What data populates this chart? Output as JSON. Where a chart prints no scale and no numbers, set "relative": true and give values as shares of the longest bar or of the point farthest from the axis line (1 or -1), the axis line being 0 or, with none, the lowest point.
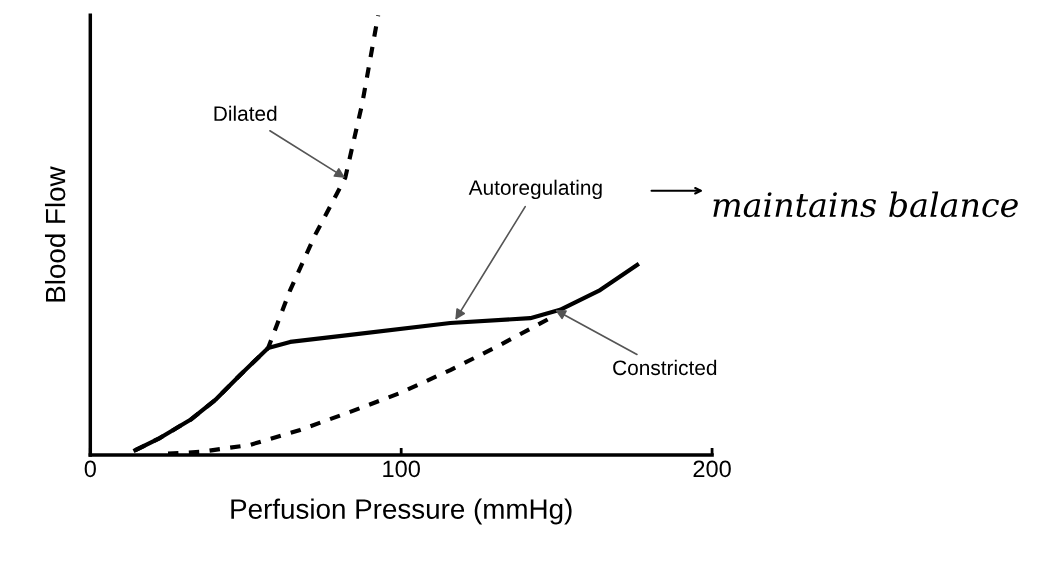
{
  "chart_data": {
    "type": "line",
    "relative": true,
    "xlabel": "Perfusion Pressure (mmHg)",
    "ylabel": "Blood Flow",
    "xlim": [
      0,
      200
    ],
    "xticks": [
      0,
      100,
      200
    ],
    "tick_labels": "x",
    "grid": false,
    "legend": false,
    "marker": "none",
    "series": [
      {
        "color": "#000000",
        "line_style": "dashed",
        "x": [
          14.5,
          22.5,
          32.2,
          40.2,
          48.2,
          57.2,
          64.3,
          72.3,
          82,
          87.5,
          92.6
        ],
        "values": [
          0.011,
          0.039,
          0.08,
          0.125,
          0.182,
          0.243,
          0.375,
          0.5,
          0.63,
          0.8,
          1.0
        ]
      },
      {
        "color": "#000000",
        "line_style": "dashed",
        "x": [
          25,
          35.4,
          51.4,
          67.5,
          83.6,
          99.7,
          115.8,
          131.8,
          147.9
        ],
        "values": [
          0.003,
          0.007,
          0.023,
          0.057,
          0.098,
          0.141,
          0.193,
          0.25,
          0.311
        ]
      },
      {
        "color": "#000000",
        "line_style": "solid",
        "x": [
          14.5,
          22.5,
          32.2,
          40.2,
          48.2,
          57.2,
          64.3,
          83.6,
          115.8,
          141.5,
          151.1,
          164,
          175.9
        ],
        "values": [
          0.011,
          0.039,
          0.08,
          0.125,
          0.182,
          0.243,
          0.257,
          0.273,
          0.3,
          0.311,
          0.33,
          0.375,
          0.432
        ]
      }
    ],
    "annotations": [
      {
        "text": "Dilated",
        "x": 82,
        "y": 0.63
      },
      {
        "text": "Autoregulating",
        "x": 117.4,
        "y": 0.307
      },
      {
        "text": "Constricted",
        "x": 149.5,
        "y": 0.33
      },
      "maintains balance"
    ]
  }
}
